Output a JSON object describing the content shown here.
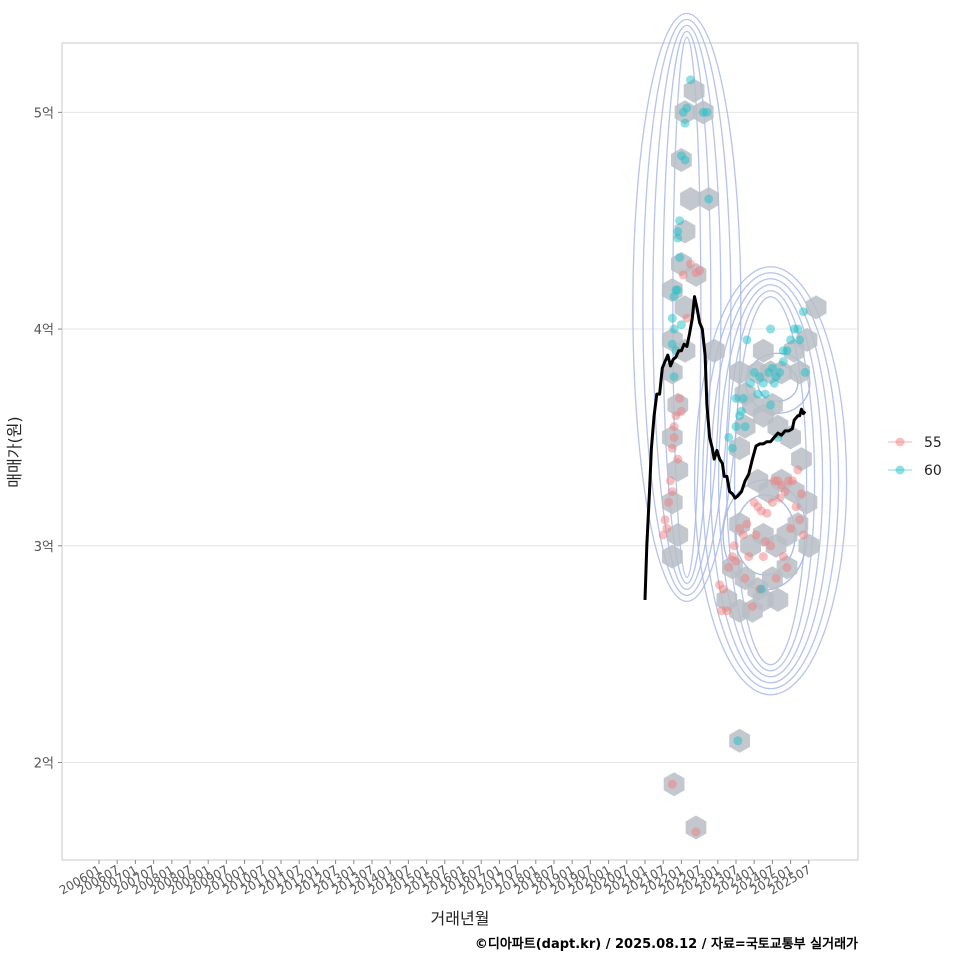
{
  "chart_data": {
    "type": "scatter",
    "title": "",
    "xlabel": "거래년월",
    "ylabel": "매매가(원)",
    "credit": "©디아파트(dapt.kr) / 2025.08.12 / 자료=국토교통부 실거래가",
    "y_ticks": [
      {
        "value": 2.0,
        "label": "2억"
      },
      {
        "value": 3.0,
        "label": "3억"
      },
      {
        "value": 4.0,
        "label": "4억"
      },
      {
        "value": 5.0,
        "label": "5억"
      }
    ],
    "ylim": [
      1.55,
      5.32
    ],
    "x_range_index": [
      -3,
      40
    ],
    "x_ticks": [
      "200601",
      "200607",
      "200701",
      "200707",
      "200801",
      "200807",
      "200901",
      "200907",
      "201001",
      "201007",
      "201101",
      "201107",
      "201201",
      "201207",
      "201301",
      "201307",
      "201401",
      "201407",
      "201501",
      "201507",
      "201601",
      "201607",
      "201701",
      "201707",
      "201801",
      "201807",
      "201901",
      "201907",
      "202001",
      "202007",
      "202101",
      "202107",
      "202201",
      "202207",
      "202301",
      "202307",
      "202401",
      "202407",
      "202501",
      "202507"
    ],
    "legend": [
      {
        "label": "55",
        "color": "#F08080"
      },
      {
        "label": "60",
        "color": "#20C0C8"
      }
    ],
    "series": [
      {
        "name": "55",
        "color": "#F08080",
        "points": [
          [
            31.0,
            3.05
          ],
          [
            31.1,
            3.12
          ],
          [
            31.3,
            3.2
          ],
          [
            31.4,
            3.3
          ],
          [
            31.5,
            3.45
          ],
          [
            31.6,
            3.5
          ],
          [
            31.7,
            3.6
          ],
          [
            31.9,
            3.68
          ],
          [
            31.2,
            3.08
          ],
          [
            31.5,
            3.25
          ],
          [
            31.8,
            3.4
          ],
          [
            31.6,
            3.55
          ],
          [
            32.0,
            3.62
          ],
          [
            32.3,
            4.05
          ],
          [
            32.1,
            4.25
          ],
          [
            32.5,
            4.3
          ],
          [
            33.0,
            4.27
          ],
          [
            32.8,
            4.26
          ],
          [
            31.5,
            1.9
          ],
          [
            32.8,
            1.68
          ],
          [
            34.2,
            2.7
          ],
          [
            34.5,
            2.7
          ],
          [
            34.1,
            2.82
          ],
          [
            34.3,
            2.8
          ],
          [
            34.6,
            2.9
          ],
          [
            34.8,
            2.95
          ],
          [
            34.9,
            3.0
          ],
          [
            35.0,
            2.93
          ],
          [
            35.2,
            3.08
          ],
          [
            35.4,
            3.05
          ],
          [
            35.6,
            3.1
          ],
          [
            35.5,
            2.85
          ],
          [
            35.9,
            2.72
          ],
          [
            36.3,
            2.8
          ],
          [
            36.5,
            2.95
          ],
          [
            36.0,
            3.2
          ],
          [
            36.2,
            3.18
          ],
          [
            36.4,
            3.16
          ],
          [
            36.7,
            3.15
          ],
          [
            36.9,
            3.0
          ],
          [
            37.0,
            3.2
          ],
          [
            37.1,
            3.3
          ],
          [
            37.3,
            3.3
          ],
          [
            37.5,
            3.28
          ],
          [
            37.7,
            3.25
          ],
          [
            37.9,
            3.3
          ],
          [
            38.1,
            3.3
          ],
          [
            38.3,
            3.18
          ],
          [
            38.5,
            3.12
          ],
          [
            38.7,
            3.05
          ],
          [
            36.6,
            3.02
          ],
          [
            37.4,
            3.22
          ],
          [
            37.6,
            2.95
          ],
          [
            37.8,
            2.9
          ],
          [
            38.0,
            3.08
          ],
          [
            38.4,
            3.35
          ],
          [
            38.6,
            3.24
          ],
          [
            36.1,
            3.05
          ],
          [
            35.7,
            2.95
          ],
          [
            37.2,
            2.85
          ]
        ]
      },
      {
        "name": "60",
        "color": "#20C0C8",
        "points": [
          [
            32.5,
            5.15
          ],
          [
            32.1,
            5.0
          ],
          [
            32.3,
            5.02
          ],
          [
            32.2,
            4.95
          ],
          [
            32.0,
            4.8
          ],
          [
            32.2,
            4.78
          ],
          [
            33.2,
            5.0
          ],
          [
            33.4,
            5.0
          ],
          [
            33.5,
            4.6
          ],
          [
            31.9,
            4.5
          ],
          [
            31.8,
            4.45
          ],
          [
            31.9,
            4.33
          ],
          [
            31.7,
            4.18
          ],
          [
            31.6,
            4.15
          ],
          [
            31.8,
            4.18
          ],
          [
            31.5,
            4.05
          ],
          [
            31.6,
            4.0
          ],
          [
            31.5,
            3.93
          ],
          [
            31.7,
            3.9
          ],
          [
            31.6,
            3.78
          ],
          [
            31.8,
            4.42
          ],
          [
            32.0,
            4.02
          ],
          [
            35.1,
            2.1
          ],
          [
            34.6,
            3.5
          ],
          [
            34.8,
            3.45
          ],
          [
            35.0,
            3.55
          ],
          [
            35.2,
            3.6
          ],
          [
            35.3,
            3.62
          ],
          [
            35.6,
            3.95
          ],
          [
            35.4,
            3.68
          ],
          [
            35.0,
            3.68
          ],
          [
            35.8,
            3.75
          ],
          [
            36.0,
            3.8
          ],
          [
            36.3,
            3.78
          ],
          [
            36.5,
            3.75
          ],
          [
            36.8,
            3.8
          ],
          [
            37.0,
            3.82
          ],
          [
            37.2,
            3.78
          ],
          [
            37.4,
            3.8
          ],
          [
            37.6,
            3.85
          ],
          [
            37.8,
            3.9
          ],
          [
            38.0,
            3.95
          ],
          [
            38.2,
            4.0
          ],
          [
            38.4,
            4.0
          ],
          [
            38.7,
            4.08
          ],
          [
            36.9,
            4.0
          ],
          [
            37.6,
            3.9
          ],
          [
            38.5,
            3.95
          ],
          [
            38.8,
            3.8
          ],
          [
            36.2,
            3.7
          ],
          [
            36.6,
            3.7
          ],
          [
            36.9,
            3.65
          ],
          [
            37.1,
            3.75
          ],
          [
            35.5,
            3.55
          ],
          [
            37.3,
            3.5
          ],
          [
            36.4,
            2.8
          ]
        ]
      }
    ],
    "trend_line": [
      [
        30.0,
        2.75
      ],
      [
        30.1,
        3.0
      ],
      [
        30.25,
        3.25
      ],
      [
        30.35,
        3.45
      ],
      [
        30.5,
        3.6
      ],
      [
        30.65,
        3.7
      ],
      [
        30.8,
        3.7
      ],
      [
        30.95,
        3.82
      ],
      [
        31.1,
        3.85
      ],
      [
        31.25,
        3.88
      ],
      [
        31.4,
        3.83
      ],
      [
        31.55,
        3.86
      ],
      [
        31.7,
        3.87
      ],
      [
        31.85,
        3.9
      ],
      [
        32.0,
        3.9
      ],
      [
        32.15,
        3.93
      ],
      [
        32.3,
        3.92
      ],
      [
        32.45,
        3.98
      ],
      [
        32.6,
        4.05
      ],
      [
        32.72,
        4.15
      ],
      [
        32.85,
        4.1
      ],
      [
        33.0,
        4.03
      ],
      [
        33.15,
        4.0
      ],
      [
        33.3,
        3.88
      ],
      [
        33.4,
        3.65
      ],
      [
        33.55,
        3.5
      ],
      [
        33.7,
        3.45
      ],
      [
        33.8,
        3.4
      ],
      [
        33.95,
        3.44
      ],
      [
        34.1,
        3.4
      ],
      [
        34.25,
        3.38
      ],
      [
        34.35,
        3.32
      ],
      [
        34.5,
        3.32
      ],
      [
        34.65,
        3.25
      ],
      [
        34.8,
        3.24
      ],
      [
        34.95,
        3.22
      ],
      [
        35.1,
        3.23
      ],
      [
        35.3,
        3.25
      ],
      [
        35.5,
        3.3
      ],
      [
        35.7,
        3.33
      ],
      [
        35.9,
        3.4
      ],
      [
        36.1,
        3.46
      ],
      [
        36.3,
        3.47
      ],
      [
        36.5,
        3.47
      ],
      [
        36.7,
        3.48
      ],
      [
        36.9,
        3.48
      ],
      [
        37.1,
        3.5
      ],
      [
        37.3,
        3.52
      ],
      [
        37.5,
        3.51
      ],
      [
        37.7,
        3.53
      ],
      [
        37.9,
        3.53
      ],
      [
        38.1,
        3.54
      ],
      [
        38.2,
        3.58
      ],
      [
        38.4,
        3.6
      ],
      [
        38.5,
        3.6
      ],
      [
        38.6,
        3.63
      ],
      [
        38.7,
        3.61
      ],
      [
        38.8,
        3.62
      ]
    ],
    "hexbins": [
      [
        32.7,
        5.1
      ],
      [
        32.2,
        5.0
      ],
      [
        33.2,
        5.0
      ],
      [
        32.0,
        4.78
      ],
      [
        32.5,
        4.6
      ],
      [
        33.5,
        4.6
      ],
      [
        32.2,
        4.45
      ],
      [
        32.0,
        4.3
      ],
      [
        32.8,
        4.25
      ],
      [
        31.5,
        4.18
      ],
      [
        32.2,
        4.1
      ],
      [
        31.5,
        3.95
      ],
      [
        32.2,
        3.9
      ],
      [
        31.5,
        3.8
      ],
      [
        31.8,
        3.65
      ],
      [
        31.5,
        3.5
      ],
      [
        31.8,
        3.35
      ],
      [
        31.5,
        3.2
      ],
      [
        31.8,
        3.05
      ],
      [
        31.5,
        2.95
      ],
      [
        33.8,
        3.9
      ],
      [
        31.6,
        1.9
      ],
      [
        32.8,
        1.7
      ],
      [
        35.2,
        2.1
      ],
      [
        35.2,
        3.8
      ],
      [
        35.9,
        3.65
      ],
      [
        35.5,
        3.55
      ],
      [
        35.2,
        3.45
      ],
      [
        35.5,
        3.7
      ],
      [
        36.5,
        3.9
      ],
      [
        36.2,
        3.8
      ],
      [
        36.9,
        3.8
      ],
      [
        37.5,
        3.8
      ],
      [
        38.2,
        3.9
      ],
      [
        38.9,
        3.95
      ],
      [
        38.5,
        3.8
      ],
      [
        37.0,
        3.65
      ],
      [
        36.5,
        3.6
      ],
      [
        37.3,
        3.55
      ],
      [
        38.0,
        3.5
      ],
      [
        38.6,
        3.4
      ],
      [
        36.2,
        3.3
      ],
      [
        36.8,
        3.25
      ],
      [
        37.5,
        3.3
      ],
      [
        38.2,
        3.25
      ],
      [
        38.9,
        3.2
      ],
      [
        39.4,
        4.1
      ],
      [
        35.2,
        3.1
      ],
      [
        35.8,
        3.0
      ],
      [
        36.5,
        3.05
      ],
      [
        37.2,
        3.0
      ],
      [
        37.8,
        3.05
      ],
      [
        38.4,
        3.1
      ],
      [
        39.0,
        3.0
      ],
      [
        34.8,
        2.9
      ],
      [
        35.5,
        2.85
      ],
      [
        36.2,
        2.8
      ],
      [
        37.0,
        2.85
      ],
      [
        34.5,
        2.75
      ],
      [
        35.2,
        2.7
      ],
      [
        35.9,
        2.7
      ],
      [
        36.5,
        2.75
      ],
      [
        37.3,
        2.75
      ],
      [
        37.8,
        2.9
      ]
    ]
  }
}
